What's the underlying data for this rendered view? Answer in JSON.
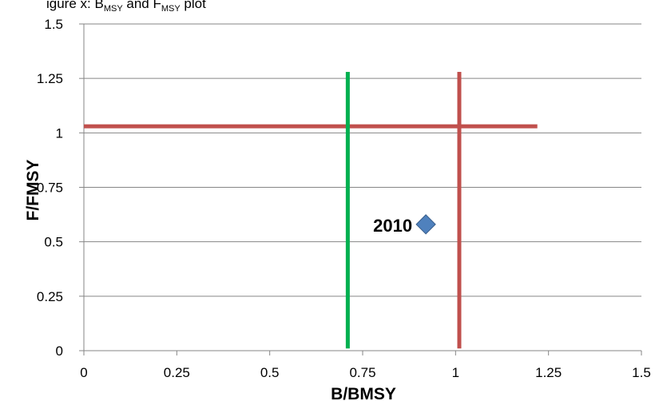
{
  "header_fragment": {
    "text": "igure x:  B",
    "sub1": "MSY",
    "mid": "  and F",
    "sub2": "MSY",
    "tail": " plot"
  },
  "chart_data": {
    "type": "scatter",
    "xlabel": "B/BMSY",
    "ylabel": "F/FMSY",
    "xlim": [
      0,
      1.5
    ],
    "ylim": [
      0,
      1.5
    ],
    "x_ticks": [
      0,
      0.25,
      0.5,
      0.75,
      1,
      1.25,
      1.5
    ],
    "y_ticks": [
      0,
      0.25,
      0.5,
      0.75,
      1,
      1.25,
      1.5
    ],
    "x_tick_labels": [
      "0",
      "0.25",
      "0.5",
      "0.75",
      "1",
      "1.25",
      "1.5"
    ],
    "y_tick_labels": [
      "0",
      "0.25",
      "0.5",
      "0.75",
      "1",
      "1.25",
      "1.5"
    ],
    "grid": "horizontal",
    "points": [
      {
        "x": 0.92,
        "y": 0.58,
        "label": "2010",
        "color": "#4f81bd"
      }
    ],
    "reference_lines": [
      {
        "orientation": "horizontal",
        "value": 1.03,
        "from": 0,
        "to": 1.22,
        "color": "#c0504d"
      },
      {
        "orientation": "vertical",
        "value": 0.71,
        "from": 0.01,
        "to": 1.28,
        "color": "#00b050"
      },
      {
        "orientation": "vertical",
        "value": 1.01,
        "from": 0.01,
        "to": 1.28,
        "color": "#c0504d"
      }
    ]
  }
}
